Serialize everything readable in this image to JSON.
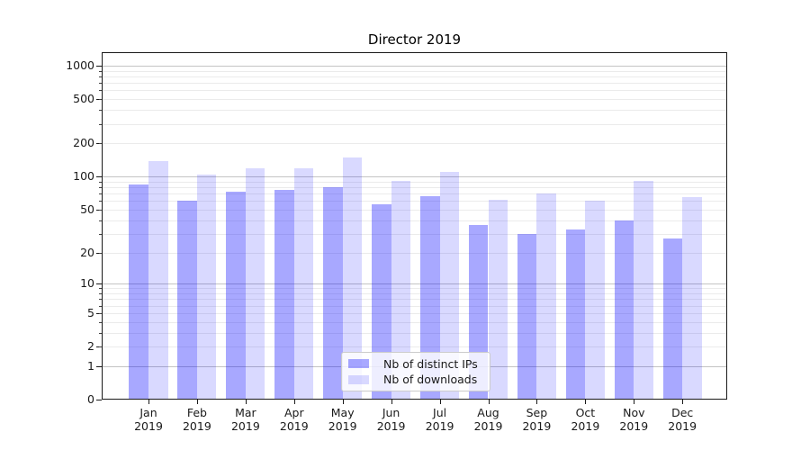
{
  "chart_data": {
    "type": "bar",
    "title": "Director 2019",
    "xlabel": "",
    "ylabel": "",
    "yscale": "log1p",
    "ylim": [
      0,
      1320
    ],
    "grid": true,
    "legend_position": "lower-center",
    "y_ticks": [
      0,
      1,
      2,
      5,
      10,
      20,
      50,
      100,
      200,
      500,
      1000
    ],
    "categories": [
      "Jan",
      "Feb",
      "Mar",
      "Apr",
      "May",
      "Jun",
      "Jul",
      "Aug",
      "Sep",
      "Oct",
      "Nov",
      "Dec"
    ],
    "x_year_label": "2019",
    "series": [
      {
        "key": "distinct-ips",
        "name": "Nb of distinct IPs",
        "color": "rgba(0,0,255,0.34)",
        "values": [
          84,
          60,
          73,
          75,
          80,
          56,
          66,
          36,
          30,
          33,
          40,
          27
        ]
      },
      {
        "key": "downloads",
        "name": "Nb of downloads",
        "color": "rgba(0,0,255,0.15)",
        "values": [
          139,
          104,
          118,
          120,
          150,
          92,
          111,
          61,
          70,
          60,
          91,
          65
        ]
      }
    ],
    "colors": {
      "major_grid": "#c4c4c4",
      "minor_grid": "#ebebeb",
      "axis": "#1a1a1a"
    }
  }
}
